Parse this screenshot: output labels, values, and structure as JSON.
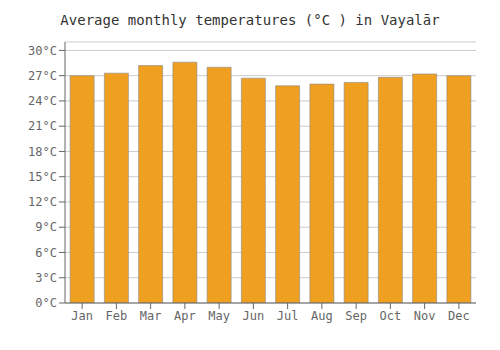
{
  "chart_data": {
    "type": "bar",
    "title": "Average monthly temperatures (°C ) in Vayalār",
    "categories": [
      "Jan",
      "Feb",
      "Mar",
      "Apr",
      "May",
      "Jun",
      "Jul",
      "Aug",
      "Sep",
      "Oct",
      "Nov",
      "Dec"
    ],
    "values": [
      27.0,
      27.3,
      28.2,
      28.6,
      28.0,
      26.7,
      25.8,
      26.0,
      26.2,
      26.8,
      27.2,
      27.0
    ],
    "color": "#F0A020",
    "ylim": [
      0,
      31
    ],
    "yticks": [
      {
        "value": 0,
        "label": "0°C"
      },
      {
        "value": 3,
        "label": "3°C"
      },
      {
        "value": 6,
        "label": "6°C"
      },
      {
        "value": 9,
        "label": "9°C"
      },
      {
        "value": 12,
        "label": "12°C"
      },
      {
        "value": 15,
        "label": "15°C"
      },
      {
        "value": 18,
        "label": "18°C"
      },
      {
        "value": 21,
        "label": "21°C"
      },
      {
        "value": 24,
        "label": "24°C"
      },
      {
        "value": 27,
        "label": "27°C"
      },
      {
        "value": 30,
        "label": "30°C"
      }
    ],
    "grid": true
  }
}
